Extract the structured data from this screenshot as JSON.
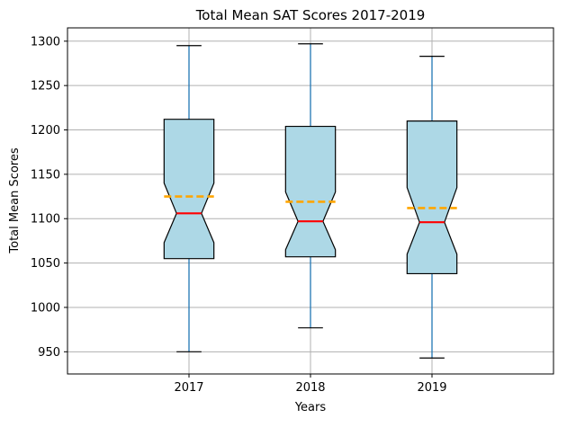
{
  "chart_data": {
    "type": "box",
    "title": "Total Mean SAT Scores 2017-2019",
    "xlabel": "Years",
    "ylabel": "Total Mean Scores",
    "categories": [
      "2017",
      "2018",
      "2019"
    ],
    "ylim": [
      925,
      1315
    ],
    "yticks": [
      950,
      1000,
      1050,
      1100,
      1150,
      1200,
      1250,
      1300
    ],
    "grid": true,
    "notched": true,
    "boxes": [
      {
        "whisker_low": 950,
        "q1": 1055,
        "notch_low": 1073,
        "median": 1106,
        "notch_high": 1140,
        "q3": 1212,
        "whisker_high": 1295,
        "mean": 1125
      },
      {
        "whisker_low": 977,
        "q1": 1057,
        "notch_low": 1065,
        "median": 1097,
        "notch_high": 1130,
        "q3": 1204,
        "whisker_high": 1297,
        "mean": 1119
      },
      {
        "whisker_low": 943,
        "q1": 1038,
        "notch_low": 1060,
        "median": 1096,
        "notch_high": 1135,
        "q3": 1210,
        "whisker_high": 1283,
        "mean": 1112
      }
    ],
    "colors": {
      "box_fill": "#add8e6",
      "box_edge": "#000000",
      "whisker": "#1f77b4",
      "median": "#ff0000",
      "mean": "#ffa500",
      "grid": "#b0b0b0"
    }
  }
}
